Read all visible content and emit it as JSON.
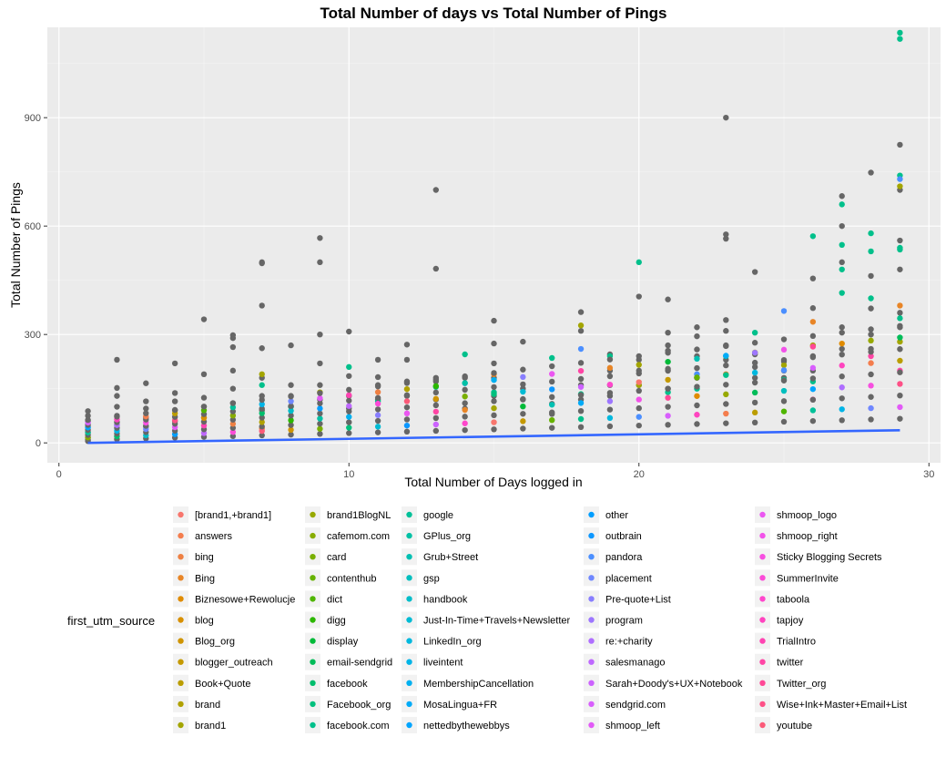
{
  "chart_data": {
    "type": "scatter",
    "title": "Total Number of days vs Total Number of Pings",
    "xlabel": "Total Number of Days logged in",
    "ylabel": "Total Number of Pings",
    "xlim": [
      -0.4,
      30.4
    ],
    "ylim": [
      -55,
      1150
    ],
    "x_ticks": [
      0,
      10,
      20,
      30
    ],
    "y_ticks": [
      0,
      300,
      600,
      900
    ],
    "grid": true,
    "legend_title": "first_utm_source",
    "legend_position": "bottom",
    "sources": [
      "[brand1,+brand1]",
      "answers",
      "bing",
      "Bing",
      "Biznesowe+Rewolucje",
      "blog",
      "Blog_org",
      "blogger_outreach",
      "Book+Quote",
      "brand",
      "brand1",
      "brand1BlogNL",
      "cafemom.com",
      "card",
      "contenthub",
      "dict",
      "digg",
      "display",
      "email-sendgrid",
      "facebook",
      "Facebook_org",
      "facebook.com",
      "google",
      "GPlus_org",
      "Grub+Street",
      "gsp",
      "handbook",
      "Just-In-Time+Travels+Newsletter",
      "LinkedIn_org",
      "liveintent",
      "MembershipCancellation",
      "MosaLingua+FR",
      "nettedbythewebbys",
      "other",
      "outbrain",
      "pandora",
      "placement",
      "Pre-quote+List",
      "program",
      "re:+charity",
      "salesmanago",
      "Sarah+Doody's+UX+Notebook",
      "sendgrid.com",
      "shmoop_left",
      "shmoop_logo",
      "shmoop_right",
      "Sticky Blogging Secrets",
      "SummerInvite",
      "taboola",
      "tapjoy",
      "TrialIntro",
      "twitter",
      "Twitter_org",
      "Wise+Ink+Master+Email+List",
      "youtube"
    ],
    "source_colors": [
      "#F8766D",
      "#F47D4D",
      "#EE8043",
      "#E88526",
      "#E08B00",
      "#D89000",
      "#CF9400",
      "#C59900",
      "#BB9D00",
      "#B0A100",
      "#A3A500",
      "#97A900",
      "#88AC00",
      "#79AF00",
      "#66B200",
      "#4FB500",
      "#2CB700",
      "#00BA38",
      "#00BC59",
      "#00BE6D",
      "#00C07D",
      "#00C08B",
      "#00C199",
      "#00C1A5",
      "#00C0B2",
      "#00BFBE",
      "#00BDC9",
      "#00BBD4",
      "#00B8DE",
      "#00B4E7",
      "#00B0F0",
      "#00ABF8",
      "#00A5FF",
      "#009EFF",
      "#0C97FF",
      "#4B8FFF",
      "#6F87FF",
      "#887EFF",
      "#9D76FF",
      "#AF6EFF",
      "#BE68FF",
      "#CC62FF",
      "#D85EFD",
      "#E25AF7",
      "#EB57F1",
      "#F252E9",
      "#F74FE0",
      "#FB4BD7",
      "#FF47CC",
      "#FF44BF",
      "#FF43B2",
      "#FF45A5",
      "#FF4896",
      "#FE5087",
      "#FB5A78"
    ],
    "unattributed_color": "#666666",
    "series": [
      {
        "name": "unattributed",
        "points": [
          [
            1,
            88
          ],
          [
            1,
            75
          ],
          [
            1,
            60
          ],
          [
            1,
            45
          ],
          [
            1,
            30
          ],
          [
            1,
            15
          ],
          [
            1,
            5
          ],
          [
            2,
            230
          ],
          [
            2,
            152
          ],
          [
            2,
            130
          ],
          [
            2,
            100
          ],
          [
            2,
            75
          ],
          [
            2,
            50
          ],
          [
            3,
            165
          ],
          [
            3,
            115
          ],
          [
            3,
            95
          ],
          [
            3,
            70
          ],
          [
            3,
            45
          ],
          [
            4,
            220
          ],
          [
            4,
            138
          ],
          [
            4,
            115
          ],
          [
            4,
            90
          ],
          [
            4,
            60
          ],
          [
            5,
            342
          ],
          [
            5,
            190
          ],
          [
            5,
            125
          ],
          [
            5,
            100
          ],
          [
            5,
            70
          ],
          [
            6,
            298
          ],
          [
            6,
            290
          ],
          [
            6,
            265
          ],
          [
            6,
            200
          ],
          [
            6,
            150
          ],
          [
            6,
            110
          ],
          [
            7,
            500
          ],
          [
            7,
            497
          ],
          [
            7,
            380
          ],
          [
            7,
            262
          ],
          [
            7,
            180
          ],
          [
            7,
            130
          ],
          [
            7,
            90
          ],
          [
            8,
            270
          ],
          [
            8,
            160
          ],
          [
            8,
            130
          ],
          [
            8,
            100
          ],
          [
            9,
            567
          ],
          [
            9,
            500
          ],
          [
            9,
            300
          ],
          [
            9,
            220
          ],
          [
            9,
            160
          ],
          [
            9,
            120
          ],
          [
            10,
            308
          ],
          [
            10,
            185
          ],
          [
            10,
            130
          ],
          [
            10,
            95
          ],
          [
            11,
            230
          ],
          [
            11,
            182
          ],
          [
            11,
            160
          ],
          [
            11,
            120
          ],
          [
            12,
            272
          ],
          [
            12,
            230
          ],
          [
            12,
            170
          ],
          [
            12,
            130
          ],
          [
            13,
            700
          ],
          [
            13,
            482
          ],
          [
            13,
            180
          ],
          [
            13,
            170
          ],
          [
            13,
            120
          ],
          [
            14,
            180
          ],
          [
            14,
            95
          ],
          [
            15,
            338
          ],
          [
            15,
            275
          ],
          [
            15,
            220
          ],
          [
            15,
            180
          ],
          [
            15,
            130
          ],
          [
            16,
            280
          ],
          [
            16,
            150
          ],
          [
            16,
            120
          ],
          [
            17,
            108
          ],
          [
            17,
            80
          ],
          [
            18,
            362
          ],
          [
            18,
            310
          ],
          [
            18,
            160
          ],
          [
            18,
            120
          ],
          [
            19,
            245
          ],
          [
            19,
            200
          ],
          [
            19,
            160
          ],
          [
            19,
            130
          ],
          [
            20,
            405
          ],
          [
            20,
            230
          ],
          [
            20,
            200
          ],
          [
            20,
            160
          ],
          [
            21,
            397
          ],
          [
            21,
            305
          ],
          [
            21,
            270
          ],
          [
            21,
            255
          ],
          [
            21,
            205
          ],
          [
            21,
            150
          ],
          [
            22,
            320
          ],
          [
            22,
            295
          ],
          [
            22,
            240
          ],
          [
            22,
            180
          ],
          [
            23,
            900
          ],
          [
            23,
            577
          ],
          [
            23,
            565
          ],
          [
            23,
            340
          ],
          [
            23,
            310
          ],
          [
            23,
            270
          ],
          [
            23,
            230
          ],
          [
            24,
            473
          ],
          [
            24,
            245
          ],
          [
            24,
            210
          ],
          [
            24,
            180
          ],
          [
            25,
            225
          ],
          [
            25,
            200
          ],
          [
            25,
            180
          ],
          [
            26,
            455
          ],
          [
            26,
            373
          ],
          [
            26,
            240
          ],
          [
            26,
            200
          ],
          [
            27,
            683
          ],
          [
            27,
            600
          ],
          [
            27,
            500
          ],
          [
            27,
            320
          ],
          [
            27,
            260
          ],
          [
            28,
            748
          ],
          [
            28,
            462
          ],
          [
            28,
            372
          ],
          [
            28,
            300
          ],
          [
            28,
            260
          ],
          [
            29,
            825
          ],
          [
            29,
            700
          ],
          [
            29,
            560
          ],
          [
            29,
            480
          ],
          [
            29,
            360
          ],
          [
            29,
            320
          ]
        ]
      },
      {
        "name": "facebook.com",
        "points": [
          [
            7,
            160
          ],
          [
            8,
            100
          ],
          [
            10,
            210
          ],
          [
            11,
            115
          ],
          [
            13,
            155
          ],
          [
            14,
            245
          ],
          [
            15,
            140
          ],
          [
            17,
            235
          ],
          [
            18,
            135
          ],
          [
            19,
            240
          ],
          [
            20,
            500
          ],
          [
            21,
            140
          ],
          [
            22,
            150
          ],
          [
            23,
            240
          ],
          [
            24,
            305
          ],
          [
            25,
            175
          ],
          [
            26,
            572
          ],
          [
            26,
            170
          ],
          [
            27,
            660
          ],
          [
            27,
            548
          ],
          [
            27,
            480
          ],
          [
            27,
            415
          ],
          [
            28,
            580
          ],
          [
            28,
            530
          ],
          [
            28,
            400
          ],
          [
            29,
            1135
          ],
          [
            29,
            1118
          ],
          [
            29,
            740
          ],
          [
            29,
            540
          ],
          [
            29,
            535
          ],
          [
            29,
            345
          ]
        ]
      },
      {
        "name": "brand1",
        "points": [
          [
            7,
            190
          ],
          [
            9,
            140
          ],
          [
            18,
            325
          ],
          [
            20,
            160
          ],
          [
            24,
            250
          ],
          [
            25,
            215
          ],
          [
            26,
            270
          ],
          [
            29,
            710
          ],
          [
            29,
            280
          ]
        ]
      },
      {
        "name": "pandora",
        "points": [
          [
            14,
            165
          ],
          [
            18,
            260
          ],
          [
            22,
            190
          ],
          [
            25,
            365
          ],
          [
            29,
            730
          ]
        ]
      },
      {
        "name": "Bing",
        "points": [
          [
            7,
            40
          ],
          [
            15,
            190
          ],
          [
            23,
            190
          ],
          [
            26,
            335
          ],
          [
            29,
            380
          ]
        ]
      },
      {
        "name": "twitter",
        "points": [
          [
            26,
            120
          ],
          [
            28,
            240
          ],
          [
            29,
            200
          ]
        ]
      }
    ],
    "trend_line": {
      "x": [
        1,
        29
      ],
      "y": [
        0,
        35
      ]
    }
  }
}
